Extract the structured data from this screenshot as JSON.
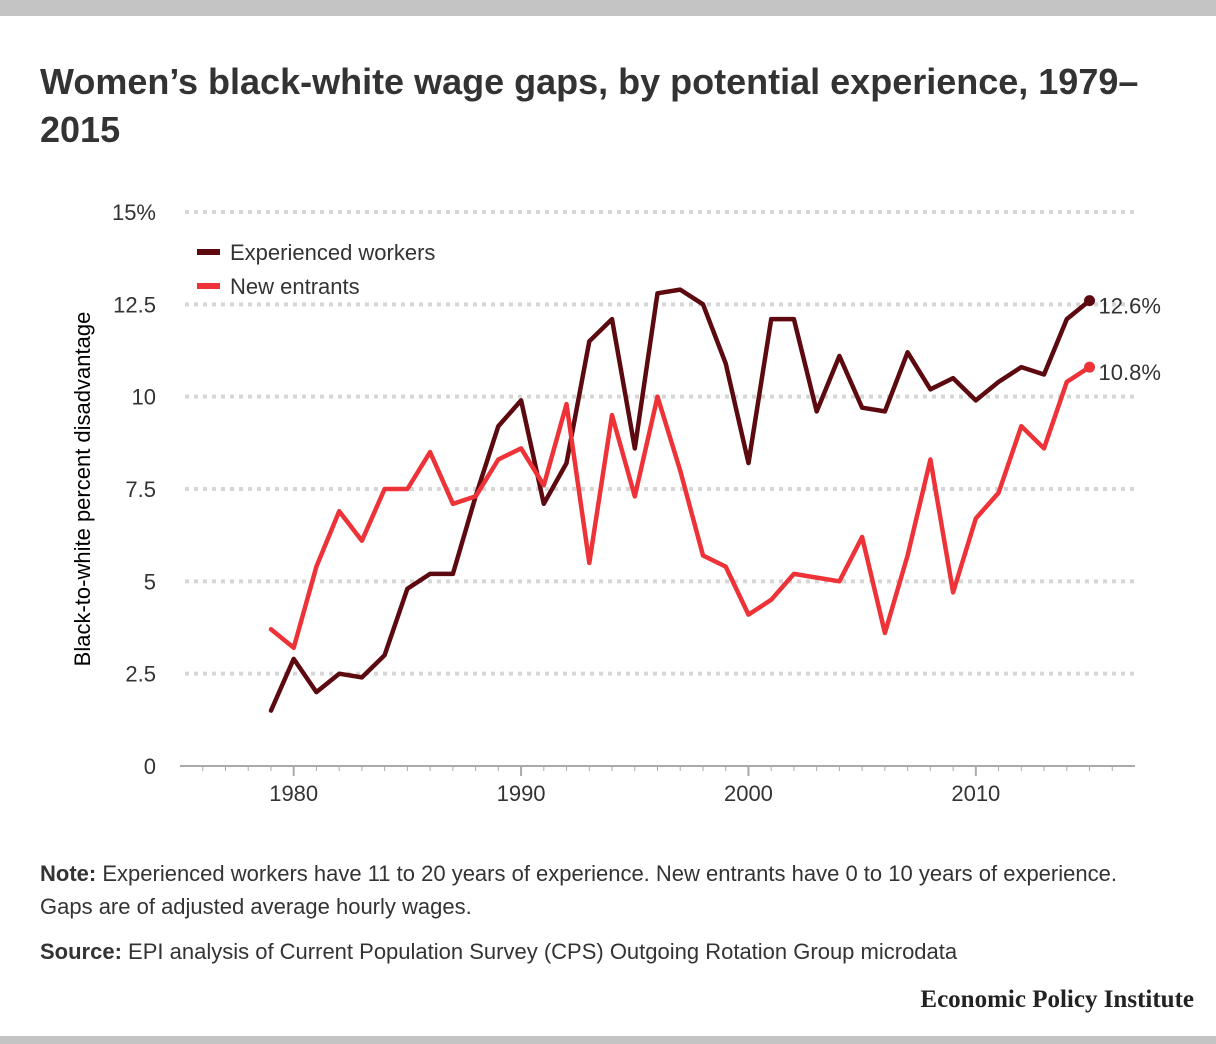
{
  "title": "Women’s black-white wage gaps, by potential experience, 1979–2015",
  "note_label": "Note:",
  "note_text": "Experienced workers have 11 to 20 years of experience. New entrants have 0 to 10 years of experience. Gaps are of adjusted average hourly wages.",
  "source_label": "Source:",
  "source_text": "EPI analysis of Current Population Survey (CPS) Outgoing Rotation Group microdata",
  "brand": "Economic Policy Institute",
  "colors": {
    "experienced": "#5c0a0f",
    "new_entrants": "#ee3338",
    "grid": "#d6d6d6",
    "axis": "#aaaaaa",
    "text": "#333333"
  },
  "chart_data": {
    "type": "line",
    "title": "Women’s black-white wage gaps, by potential experience, 1979–2015",
    "xlabel": "",
    "ylabel": "Black-to-white percent disadvantage",
    "xlim": [
      1975,
      2017
    ],
    "ylim": [
      0,
      15
    ],
    "xticks": [
      1980,
      1990,
      2000,
      2010
    ],
    "yticks": [
      0,
      2.5,
      5,
      7.5,
      10,
      12.5,
      15
    ],
    "ytick_labels": [
      "0",
      "2.5",
      "5",
      "7.5",
      "10",
      "12.5",
      "15%"
    ],
    "grid": true,
    "legend_position": "top-left",
    "x": [
      1979,
      1980,
      1981,
      1982,
      1983,
      1984,
      1985,
      1986,
      1987,
      1988,
      1989,
      1990,
      1991,
      1992,
      1993,
      1994,
      1995,
      1996,
      1997,
      1998,
      1999,
      2000,
      2001,
      2002,
      2003,
      2004,
      2005,
      2006,
      2007,
      2008,
      2009,
      2010,
      2011,
      2012,
      2013,
      2014,
      2015
    ],
    "series": [
      {
        "name": "Experienced workers",
        "color": "#5c0a0f",
        "end_label": "12.6%",
        "values": [
          1.5,
          2.9,
          2.0,
          2.5,
          2.4,
          3.0,
          4.8,
          5.2,
          5.2,
          7.3,
          9.2,
          9.9,
          7.1,
          8.2,
          11.5,
          12.1,
          8.6,
          12.8,
          12.9,
          12.5,
          10.9,
          8.2,
          12.1,
          12.1,
          9.6,
          11.1,
          9.7,
          9.6,
          11.2,
          10.2,
          10.5,
          9.9,
          10.4,
          10.8,
          10.6,
          12.1,
          12.6
        ]
      },
      {
        "name": "New entrants",
        "color": "#ee3338",
        "end_label": "10.8%",
        "values": [
          3.7,
          3.2,
          5.4,
          6.9,
          6.1,
          7.5,
          7.5,
          8.5,
          7.1,
          7.3,
          8.3,
          8.6,
          7.6,
          9.8,
          5.5,
          9.5,
          7.3,
          10.0,
          8.0,
          5.7,
          5.4,
          4.1,
          4.5,
          5.2,
          5.1,
          5.0,
          6.2,
          3.6,
          5.7,
          8.3,
          4.7,
          6.7,
          7.4,
          9.2,
          8.6,
          10.4,
          10.8
        ]
      }
    ]
  }
}
